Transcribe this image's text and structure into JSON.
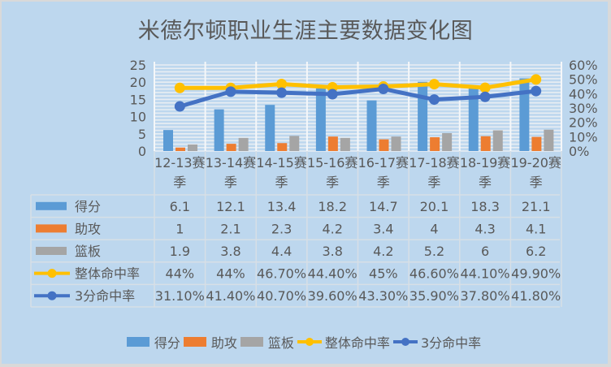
{
  "title": "米德尔顿职业生涯主要数据变化图",
  "colors": {
    "background": "#BDD7EE",
    "points": "#5B9BD5",
    "assists": "#ED7D31",
    "rebounds": "#A5A5A5",
    "fg_pct": "#FFC000",
    "three_pct": "#4472C4",
    "text": "#595959",
    "grid": "#E4E8EC"
  },
  "legend": [
    {
      "label": "得分",
      "type": "bar",
      "color": "#5B9BD5"
    },
    {
      "label": "助攻",
      "type": "bar",
      "color": "#ED7D31"
    },
    {
      "label": "篮板",
      "type": "bar",
      "color": "#A5A5A5"
    },
    {
      "label": "整体命中率",
      "type": "line",
      "color": "#FFC000"
    },
    {
      "label": "3分命中率",
      "type": "line",
      "color": "#4472C4"
    }
  ],
  "table": {
    "rows": [
      {
        "label": "得分",
        "values": [
          "6.1",
          "12.1",
          "13.4",
          "18.2",
          "14.7",
          "20.1",
          "18.3",
          "21.1"
        ]
      },
      {
        "label": "助攻",
        "values": [
          "1",
          "2.1",
          "2.3",
          "4.2",
          "3.4",
          "4",
          "4.3",
          "4.1"
        ]
      },
      {
        "label": "篮板",
        "values": [
          "1.9",
          "3.8",
          "4.4",
          "3.8",
          "4.2",
          "5.2",
          "6",
          "6.2"
        ]
      },
      {
        "label": "整体命中率",
        "values": [
          "44%",
          "44%",
          "46.70%",
          "44.40%",
          "45%",
          "46.60%",
          "44.10%",
          "49.90%"
        ]
      },
      {
        "label": "3分命中率",
        "values": [
          "31.10%",
          "41.40%",
          "40.70%",
          "39.60%",
          "43.30%",
          "35.90%",
          "37.80%",
          "41.80%"
        ]
      }
    ]
  },
  "chart_data": {
    "type": "bar",
    "title": "米德尔顿职业生涯主要数据变化图",
    "categories": [
      "12-13赛季",
      "13-14赛季",
      "14-15赛季",
      "15-16赛季",
      "16-17赛季",
      "17-18赛季",
      "18-19赛季",
      "19-20赛季"
    ],
    "series": [
      {
        "name": "得分",
        "type": "bar",
        "axis": "left",
        "values": [
          6.1,
          12.1,
          13.4,
          18.2,
          14.7,
          20.1,
          18.3,
          21.1
        ]
      },
      {
        "name": "助攻",
        "type": "bar",
        "axis": "left",
        "values": [
          1,
          2.1,
          2.3,
          4.2,
          3.4,
          4,
          4.3,
          4.1
        ]
      },
      {
        "name": "篮板",
        "type": "bar",
        "axis": "left",
        "values": [
          1.9,
          3.8,
          4.4,
          3.8,
          4.2,
          5.2,
          6,
          6.2
        ]
      },
      {
        "name": "整体命中率",
        "type": "line",
        "axis": "right",
        "values": [
          0.44,
          0.44,
          0.467,
          0.444,
          0.45,
          0.466,
          0.441,
          0.499
        ]
      },
      {
        "name": "3分命中率",
        "type": "line",
        "axis": "right",
        "values": [
          0.311,
          0.414,
          0.407,
          0.396,
          0.433,
          0.359,
          0.378,
          0.418
        ]
      }
    ],
    "y_left": {
      "ylim": [
        0,
        25
      ],
      "ticks": [
        "0",
        "5",
        "10",
        "15",
        "20",
        "25"
      ]
    },
    "y_right": {
      "ylim": [
        0,
        0.6
      ],
      "ticks": [
        "0%",
        "10%",
        "20%",
        "30%",
        "40%",
        "50%",
        "60%"
      ]
    },
    "xlabel": "",
    "ylabel": "",
    "grid": true,
    "legend_position": "bottom",
    "data_table": true
  }
}
